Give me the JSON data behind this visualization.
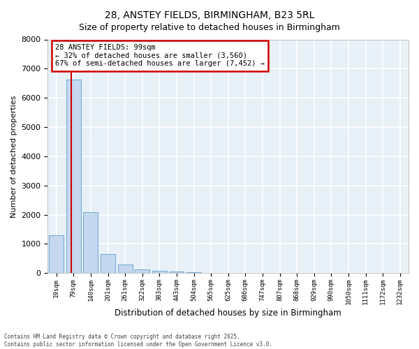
{
  "title": "28, ANSTEY FIELDS, BIRMINGHAM, B23 5RL",
  "subtitle": "Size of property relative to detached houses in Birmingham",
  "xlabel": "Distribution of detached houses by size in Birmingham",
  "ylabel": "Number of detached properties",
  "bar_color": "#c5d8f0",
  "bar_edge_color": "#7aadd4",
  "background_color": "#e8f0f8",
  "grid_color": "#ffffff",
  "categories": [
    "19sqm",
    "79sqm",
    "140sqm",
    "201sqm",
    "261sqm",
    "322sqm",
    "383sqm",
    "443sqm",
    "504sqm",
    "565sqm",
    "625sqm",
    "686sqm",
    "747sqm",
    "807sqm",
    "868sqm",
    "929sqm",
    "990sqm",
    "1050sqm",
    "1111sqm",
    "1172sqm",
    "1232sqm"
  ],
  "values": [
    1300,
    6620,
    2080,
    650,
    295,
    120,
    80,
    45,
    25,
    5,
    0,
    0,
    0,
    0,
    0,
    0,
    0,
    0,
    0,
    0,
    0
  ],
  "vline_color": "#cc0000",
  "ylim": [
    0,
    8000
  ],
  "yticks": [
    0,
    1000,
    2000,
    3000,
    4000,
    5000,
    6000,
    7000,
    8000
  ],
  "annotation_text": "28 ANSTEY FIELDS: 99sqm\n← 32% of detached houses are smaller (3,560)\n67% of semi-detached houses are larger (7,452) →",
  "annotation_box_color": "#ffffff",
  "annotation_edge_color": "#cc0000",
  "footer_line1": "Contains HM Land Registry data © Crown copyright and database right 2025.",
  "footer_line2": "Contains public sector information licensed under the Open Government Licence v3.0."
}
